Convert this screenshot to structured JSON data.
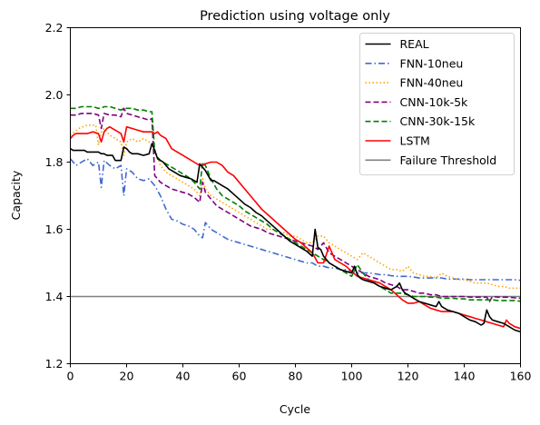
{
  "chart_data": {
    "type": "line",
    "title": "Prediction using voltage only",
    "xlabel": "Cycle",
    "ylabel": "Capacity",
    "xlim": [
      0,
      160
    ],
    "ylim": [
      1.2,
      2.2
    ],
    "xticks": [
      0,
      20,
      40,
      60,
      80,
      100,
      120,
      140,
      160
    ],
    "xtick_labels": [
      "0",
      "20",
      "40",
      "60",
      "80",
      "100",
      "120",
      "140",
      "160"
    ],
    "yticks": [
      1.2,
      1.4,
      1.6,
      1.8,
      2.0,
      2.2
    ],
    "ytick_labels": [
      "1.2",
      "1.4",
      "1.6",
      "1.8",
      "2.0",
      "2.2"
    ],
    "grid": false,
    "legend_position": "top-right",
    "series": [
      {
        "name": "REAL",
        "color": "#000000",
        "style": "solid",
        "width": 1.6,
        "x": [
          0,
          1,
          5,
          6,
          10,
          11,
          12,
          13,
          14,
          15,
          16,
          18,
          19,
          20,
          21,
          22,
          24,
          26,
          28,
          29,
          30,
          31,
          33,
          35,
          37,
          39,
          41,
          43,
          45,
          46,
          47,
          48,
          49,
          50,
          51,
          52,
          54,
          56,
          58,
          60,
          62,
          64,
          66,
          68,
          70,
          72,
          74,
          76,
          78,
          80,
          82,
          84,
          86,
          87,
          88,
          89,
          90,
          92,
          94,
          96,
          98,
          100,
          101,
          102,
          103,
          104,
          106,
          108,
          110,
          112,
          114,
          116,
          117,
          118,
          119,
          120,
          122,
          124,
          126,
          128,
          130,
          131,
          132,
          133,
          134,
          136,
          138,
          140,
          142,
          144,
          146,
          147,
          148,
          149,
          150,
          152,
          154,
          156,
          158,
          160
        ],
        "y": [
          1.84,
          1.835,
          1.835,
          1.83,
          1.83,
          1.825,
          1.825,
          1.82,
          1.82,
          1.82,
          1.805,
          1.805,
          1.845,
          1.84,
          1.83,
          1.825,
          1.825,
          1.82,
          1.825,
          1.855,
          1.835,
          1.81,
          1.8,
          1.78,
          1.77,
          1.76,
          1.755,
          1.75,
          1.74,
          1.795,
          1.785,
          1.775,
          1.76,
          1.745,
          1.745,
          1.74,
          1.73,
          1.72,
          1.705,
          1.69,
          1.675,
          1.665,
          1.65,
          1.64,
          1.625,
          1.61,
          1.595,
          1.58,
          1.565,
          1.555,
          1.545,
          1.535,
          1.52,
          1.6,
          1.545,
          1.54,
          1.52,
          1.5,
          1.49,
          1.48,
          1.475,
          1.47,
          1.49,
          1.465,
          1.455,
          1.45,
          1.445,
          1.44,
          1.43,
          1.425,
          1.42,
          1.43,
          1.44,
          1.42,
          1.41,
          1.405,
          1.395,
          1.385,
          1.38,
          1.375,
          1.37,
          1.385,
          1.37,
          1.365,
          1.36,
          1.355,
          1.35,
          1.34,
          1.33,
          1.325,
          1.315,
          1.32,
          1.36,
          1.34,
          1.33,
          1.325,
          1.32,
          1.31,
          1.3,
          1.295
        ]
      },
      {
        "name": "FNN-10neu",
        "color": "#4169cf",
        "style": "dashdot",
        "width": 1.6,
        "x": [
          0,
          2,
          4,
          6,
          8,
          10,
          11,
          12,
          14,
          16,
          18,
          19,
          20,
          22,
          24,
          26,
          28,
          30,
          32,
          34,
          36,
          38,
          40,
          42,
          44,
          46,
          47,
          48,
          50,
          52,
          54,
          56,
          58,
          60,
          62,
          64,
          66,
          68,
          70,
          72,
          74,
          76,
          78,
          80,
          82,
          84,
          86,
          88,
          90,
          92,
          94,
          96,
          98,
          100,
          102,
          104,
          106,
          108,
          110,
          112,
          114,
          116,
          118,
          120,
          122,
          124,
          126,
          128,
          130,
          132,
          134,
          136,
          138,
          140,
          142,
          144,
          146,
          148,
          150,
          152,
          154,
          156,
          158,
          160
        ],
        "y": [
          1.81,
          1.79,
          1.8,
          1.81,
          1.79,
          1.8,
          1.725,
          1.805,
          1.79,
          1.78,
          1.79,
          1.7,
          1.78,
          1.77,
          1.75,
          1.745,
          1.75,
          1.73,
          1.7,
          1.66,
          1.63,
          1.625,
          1.615,
          1.61,
          1.6,
          1.58,
          1.575,
          1.62,
          1.6,
          1.59,
          1.58,
          1.57,
          1.565,
          1.56,
          1.555,
          1.55,
          1.545,
          1.54,
          1.535,
          1.53,
          1.525,
          1.52,
          1.515,
          1.51,
          1.505,
          1.5,
          1.5,
          1.49,
          1.49,
          1.485,
          1.485,
          1.48,
          1.48,
          1.475,
          1.47,
          1.47,
          1.47,
          1.468,
          1.465,
          1.465,
          1.462,
          1.46,
          1.46,
          1.46,
          1.458,
          1.455,
          1.455,
          1.455,
          1.455,
          1.455,
          1.452,
          1.452,
          1.452,
          1.452,
          1.45,
          1.45,
          1.45,
          1.45,
          1.45,
          1.45,
          1.45,
          1.45,
          1.45,
          1.448
        ]
      },
      {
        "name": "FNN-40neu",
        "color": "#ffa500",
        "style": "dotted",
        "width": 1.6,
        "x": [
          0,
          3,
          6,
          9,
          10,
          11,
          12,
          14,
          16,
          18,
          19,
          20,
          22,
          24,
          26,
          28,
          30,
          32,
          34,
          36,
          38,
          40,
          42,
          44,
          46,
          47,
          48,
          50,
          52,
          54,
          56,
          58,
          60,
          62,
          64,
          66,
          68,
          70,
          72,
          74,
          76,
          78,
          80,
          82,
          84,
          86,
          88,
          90,
          92,
          94,
          96,
          98,
          100,
          102,
          104,
          106,
          108,
          110,
          112,
          114,
          116,
          118,
          120,
          122,
          124,
          126,
          128,
          130,
          132,
          134,
          136,
          138,
          140,
          142,
          144,
          146,
          148,
          150,
          152,
          154,
          156,
          158,
          160
        ],
        "y": [
          1.88,
          1.9,
          1.91,
          1.91,
          1.85,
          1.89,
          1.9,
          1.88,
          1.87,
          1.86,
          1.82,
          1.86,
          1.87,
          1.86,
          1.87,
          1.86,
          1.84,
          1.79,
          1.77,
          1.76,
          1.75,
          1.74,
          1.73,
          1.72,
          1.7,
          1.75,
          1.72,
          1.7,
          1.69,
          1.68,
          1.67,
          1.66,
          1.65,
          1.64,
          1.63,
          1.62,
          1.61,
          1.6,
          1.6,
          1.59,
          1.59,
          1.58,
          1.58,
          1.57,
          1.56,
          1.56,
          1.58,
          1.58,
          1.56,
          1.55,
          1.54,
          1.53,
          1.52,
          1.51,
          1.53,
          1.52,
          1.51,
          1.5,
          1.49,
          1.48,
          1.48,
          1.475,
          1.49,
          1.47,
          1.465,
          1.46,
          1.46,
          1.455,
          1.47,
          1.46,
          1.455,
          1.45,
          1.45,
          1.445,
          1.44,
          1.44,
          1.44,
          1.435,
          1.43,
          1.43,
          1.425,
          1.425,
          1.425
        ]
      },
      {
        "name": "CNN-10k-5k",
        "color": "#800080",
        "style": "dashed",
        "width": 1.6,
        "x": [
          0,
          2,
          4,
          6,
          8,
          10,
          11,
          12,
          14,
          16,
          18,
          19,
          20,
          22,
          24,
          26,
          28,
          29,
          30,
          31,
          32,
          34,
          36,
          38,
          40,
          42,
          44,
          46,
          47,
          48,
          50,
          52,
          54,
          56,
          58,
          60,
          62,
          64,
          66,
          68,
          70,
          72,
          74,
          76,
          78,
          80,
          82,
          84,
          86,
          88,
          90,
          92,
          94,
          96,
          98,
          100,
          102,
          104,
          106,
          108,
          110,
          112,
          114,
          116,
          118,
          120,
          122,
          124,
          126,
          128,
          130,
          132,
          134,
          136,
          138,
          140,
          142,
          144,
          146,
          148,
          149,
          150,
          152,
          154,
          156,
          158,
          160
        ],
        "y": [
          1.94,
          1.94,
          1.945,
          1.945,
          1.945,
          1.94,
          1.9,
          1.945,
          1.94,
          1.94,
          1.935,
          1.96,
          1.945,
          1.94,
          1.935,
          1.93,
          1.925,
          1.93,
          1.76,
          1.75,
          1.74,
          1.73,
          1.72,
          1.715,
          1.71,
          1.705,
          1.695,
          1.68,
          1.74,
          1.71,
          1.69,
          1.67,
          1.66,
          1.65,
          1.64,
          1.63,
          1.62,
          1.61,
          1.605,
          1.6,
          1.59,
          1.585,
          1.58,
          1.575,
          1.57,
          1.565,
          1.56,
          1.555,
          1.55,
          1.54,
          1.56,
          1.53,
          1.52,
          1.51,
          1.5,
          1.49,
          1.48,
          1.47,
          1.46,
          1.455,
          1.45,
          1.44,
          1.435,
          1.43,
          1.42,
          1.42,
          1.415,
          1.41,
          1.41,
          1.405,
          1.405,
          1.4,
          1.4,
          1.4,
          1.4,
          1.4,
          1.398,
          1.398,
          1.398,
          1.398,
          1.385,
          1.4,
          1.398,
          1.398,
          1.398,
          1.396,
          1.395
        ]
      },
      {
        "name": "CNN-30k-15k",
        "color": "#008000",
        "style": "dashed",
        "width": 1.6,
        "x": [
          0,
          2,
          4,
          6,
          8,
          10,
          11,
          12,
          14,
          16,
          18,
          19,
          20,
          22,
          24,
          26,
          28,
          29,
          30,
          31,
          32,
          34,
          36,
          38,
          40,
          42,
          44,
          46,
          47,
          48,
          50,
          52,
          54,
          56,
          58,
          60,
          62,
          64,
          66,
          68,
          70,
          72,
          74,
          76,
          78,
          80,
          82,
          84,
          86,
          88,
          90,
          92,
          94,
          96,
          98,
          100,
          102,
          104,
          106,
          108,
          110,
          112,
          114,
          116,
          118,
          120,
          122,
          124,
          126,
          128,
          130,
          132,
          134,
          136,
          138,
          140,
          142,
          144,
          146,
          148,
          150,
          152,
          154,
          156,
          158,
          160
        ],
        "y": [
          1.96,
          1.96,
          1.965,
          1.965,
          1.965,
          1.96,
          1.96,
          1.965,
          1.965,
          1.96,
          1.955,
          1.96,
          1.96,
          1.96,
          1.955,
          1.955,
          1.95,
          1.95,
          1.83,
          1.815,
          1.805,
          1.795,
          1.785,
          1.775,
          1.765,
          1.755,
          1.74,
          1.72,
          1.8,
          1.79,
          1.75,
          1.72,
          1.7,
          1.69,
          1.68,
          1.67,
          1.655,
          1.645,
          1.635,
          1.625,
          1.615,
          1.6,
          1.59,
          1.58,
          1.57,
          1.56,
          1.55,
          1.54,
          1.53,
          1.52,
          1.51,
          1.5,
          1.49,
          1.48,
          1.47,
          1.46,
          1.495,
          1.47,
          1.45,
          1.44,
          1.43,
          1.42,
          1.41,
          1.41,
          1.41,
          1.405,
          1.4,
          1.4,
          1.4,
          1.398,
          1.398,
          1.395,
          1.395,
          1.395,
          1.393,
          1.393,
          1.39,
          1.39,
          1.39,
          1.39,
          1.39,
          1.388,
          1.388,
          1.388,
          1.388,
          1.386
        ]
      },
      {
        "name": "LSTM",
        "color": "#ff0000",
        "style": "solid",
        "width": 1.6,
        "x": [
          0,
          1,
          2,
          4,
          6,
          8,
          10,
          11,
          12,
          13,
          14,
          16,
          18,
          19,
          20,
          22,
          24,
          26,
          28,
          29,
          30,
          31,
          32,
          34,
          36,
          38,
          40,
          42,
          44,
          46,
          47,
          48,
          50,
          51,
          52,
          54,
          56,
          58,
          60,
          62,
          64,
          66,
          68,
          70,
          72,
          74,
          76,
          78,
          80,
          82,
          84,
          86,
          88,
          90,
          92,
          94,
          96,
          98,
          100,
          102,
          104,
          106,
          108,
          110,
          112,
          114,
          116,
          118,
          120,
          122,
          124,
          126,
          128,
          130,
          132,
          134,
          136,
          138,
          140,
          142,
          144,
          146,
          148,
          150,
          152,
          154,
          155,
          156,
          158,
          160
        ],
        "y": [
          1.87,
          1.88,
          1.885,
          1.885,
          1.885,
          1.89,
          1.885,
          1.86,
          1.89,
          1.9,
          1.905,
          1.895,
          1.885,
          1.86,
          1.905,
          1.9,
          1.895,
          1.89,
          1.89,
          1.89,
          1.885,
          1.89,
          1.88,
          1.87,
          1.84,
          1.83,
          1.82,
          1.81,
          1.8,
          1.79,
          1.79,
          1.795,
          1.8,
          1.8,
          1.8,
          1.79,
          1.77,
          1.76,
          1.74,
          1.72,
          1.7,
          1.68,
          1.66,
          1.645,
          1.63,
          1.615,
          1.6,
          1.585,
          1.57,
          1.56,
          1.545,
          1.53,
          1.5,
          1.5,
          1.55,
          1.51,
          1.5,
          1.49,
          1.475,
          1.46,
          1.455,
          1.45,
          1.445,
          1.44,
          1.43,
          1.42,
          1.405,
          1.39,
          1.38,
          1.38,
          1.385,
          1.375,
          1.365,
          1.36,
          1.355,
          1.355,
          1.355,
          1.35,
          1.345,
          1.34,
          1.335,
          1.33,
          1.325,
          1.32,
          1.315,
          1.31,
          1.33,
          1.32,
          1.31,
          1.305
        ]
      },
      {
        "name": "Failure Threshold",
        "color": "#808080",
        "style": "solid",
        "width": 1.6,
        "x": [
          0,
          160
        ],
        "y": [
          1.4,
          1.4
        ]
      }
    ]
  }
}
